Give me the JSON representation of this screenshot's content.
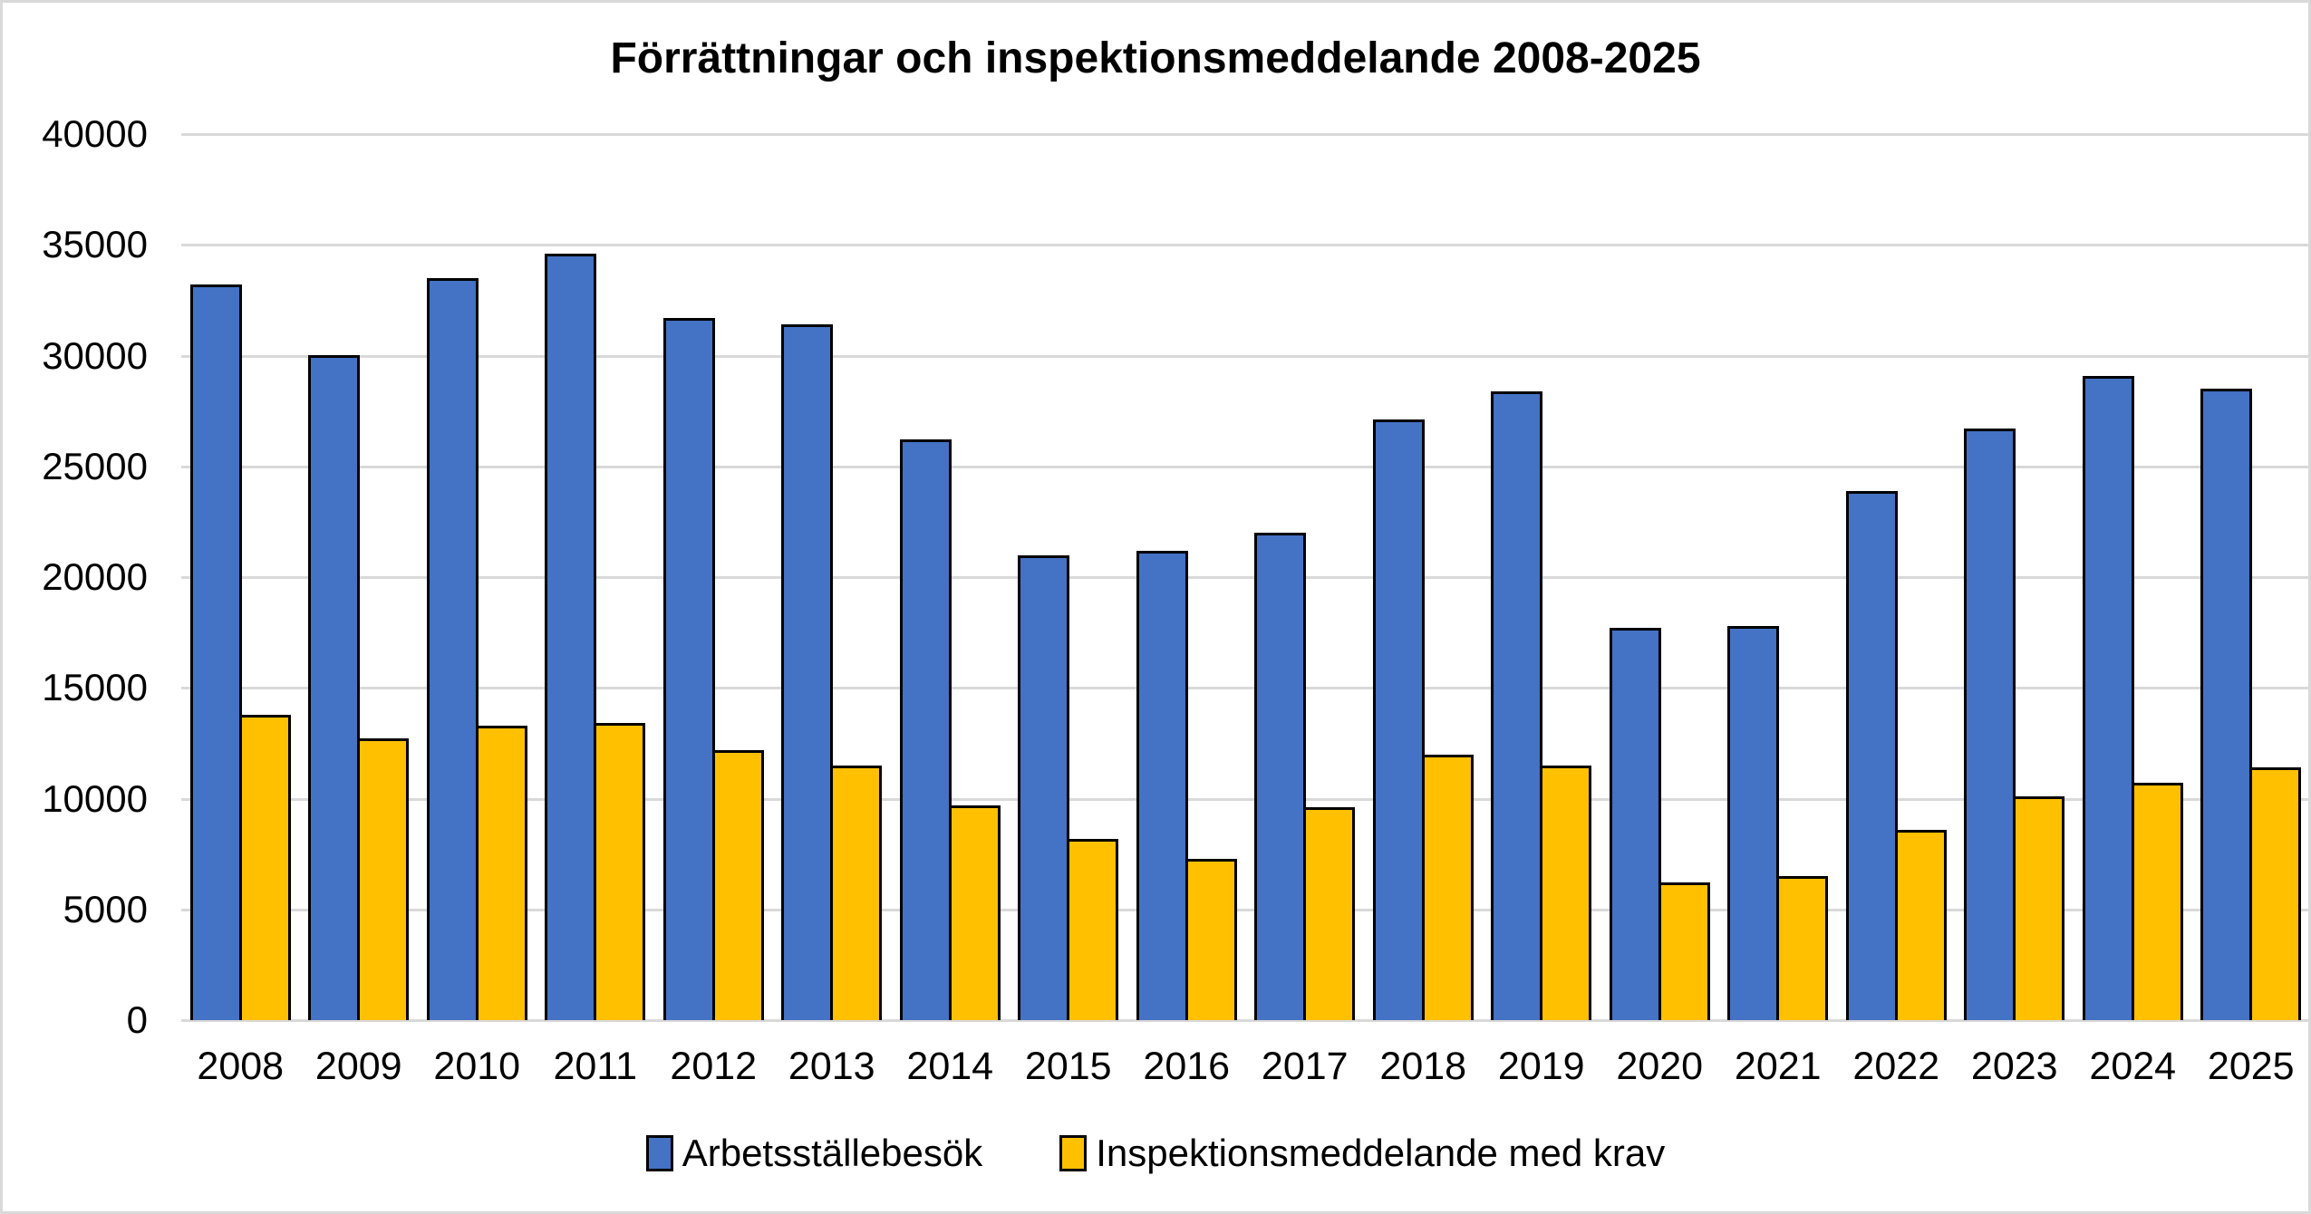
{
  "chart_data": {
    "type": "bar",
    "title": "Förrättningar och inspektionsmeddelande 2008-2025",
    "categories": [
      "2008",
      "2009",
      "2010",
      "2011",
      "2012",
      "2013",
      "2014",
      "2015",
      "2016",
      "2017",
      "2018",
      "2019",
      "2020",
      "2021",
      "2022",
      "2023",
      "2024",
      "2025"
    ],
    "series": [
      {
        "name": "Arbetsställebesök",
        "color": "#4472c4",
        "values": [
          33200,
          30000,
          33500,
          34600,
          31700,
          31400,
          26200,
          21000,
          21200,
          22000,
          27100,
          28400,
          17700,
          17800,
          23900,
          26700,
          29100,
          28500
        ]
      },
      {
        "name": "Inspektionsmeddelande med krav",
        "color": "#ffc000",
        "values": [
          13800,
          12700,
          13300,
          13400,
          12200,
          11500,
          9700,
          8200,
          7300,
          9600,
          12000,
          11500,
          6200,
          6500,
          8600,
          10100,
          10700,
          11400
        ]
      }
    ],
    "xlabel": "",
    "ylabel": "",
    "ylim": [
      0,
      40000
    ],
    "y_ticks": [
      0,
      5000,
      10000,
      15000,
      20000,
      25000,
      30000,
      35000,
      40000
    ],
    "grid": "horizontal",
    "legend_position": "bottom",
    "colors": {
      "gridline": "#d9d9d9",
      "bar_border": "#000000",
      "frame": "#d9d9d9",
      "background": "#ffffff",
      "text": "#000000"
    }
  }
}
